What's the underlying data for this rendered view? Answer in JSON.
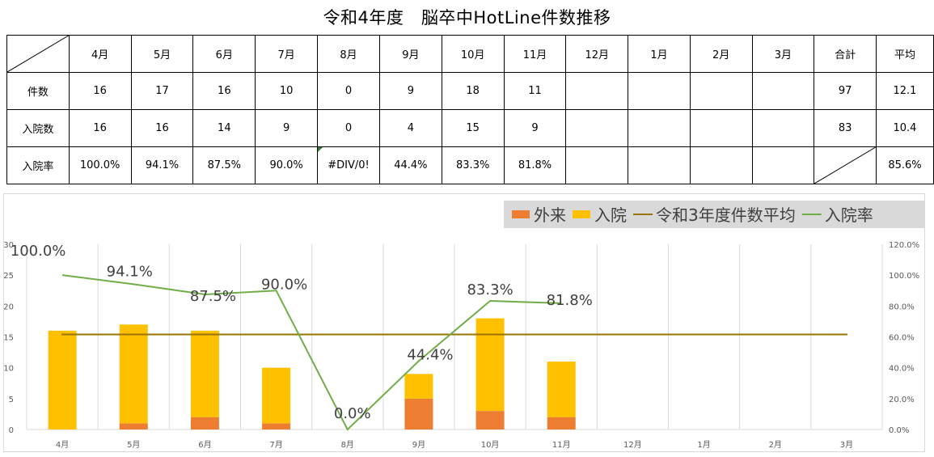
{
  "title": "令和4年度　脳卒中HotLine件数推移",
  "table": {
    "months": [
      "4月",
      "5月",
      "6月",
      "7月",
      "8月",
      "9月",
      "10月",
      "11月",
      "12月",
      "1月",
      "2月",
      "3月"
    ],
    "total_label": "合計",
    "avg_label": "平均",
    "rows": [
      {
        "label": "件数",
        "values": [
          "16",
          "17",
          "16",
          "10",
          "0",
          "9",
          "18",
          "11",
          "",
          "",
          "",
          ""
        ],
        "total": "97",
        "avg": "12.1"
      },
      {
        "label": "入院数",
        "values": [
          "16",
          "16",
          "14",
          "9",
          "0",
          "4",
          "15",
          "9",
          "",
          "",
          "",
          ""
        ],
        "total": "83",
        "avg": "10.4"
      },
      {
        "label": "入院率",
        "values": [
          "100.0%",
          "94.1%",
          "87.5%",
          "90.0%",
          "#DIV/0!",
          "44.4%",
          "83.3%",
          "81.8%",
          "",
          "",
          "",
          ""
        ],
        "total": "",
        "avg": "85.6%"
      }
    ]
  },
  "chart_data": {
    "type": "bar",
    "stacked": true,
    "categories": [
      "4月",
      "5月",
      "6月",
      "7月",
      "8月",
      "9月",
      "10月",
      "11月",
      "12月",
      "1月",
      "2月",
      "3月"
    ],
    "series": [
      {
        "name": "外来",
        "type": "bar",
        "axis": "left",
        "color": "#ed7d31",
        "values": [
          0,
          1,
          2,
          1,
          0,
          5,
          3,
          2,
          null,
          null,
          null,
          null
        ]
      },
      {
        "name": "入院",
        "type": "bar",
        "axis": "left",
        "color": "#ffc000",
        "values": [
          16,
          16,
          14,
          9,
          0,
          4,
          15,
          9,
          null,
          null,
          null,
          null
        ]
      },
      {
        "name": "令和3年度件数平均",
        "type": "line",
        "axis": "left",
        "color": "#997300",
        "values": [
          15.4,
          15.4,
          15.4,
          15.4,
          15.4,
          15.4,
          15.4,
          15.4,
          15.4,
          15.4,
          15.4,
          15.4
        ]
      },
      {
        "name": "入院率",
        "type": "line",
        "axis": "right",
        "color": "#70ad47",
        "values": [
          1.0,
          0.941,
          0.875,
          0.9,
          0.0,
          0.444,
          0.833,
          0.818,
          null,
          null,
          null,
          null
        ]
      }
    ],
    "data_labels": [
      "100.0%",
      "94.1%",
      "87.5%",
      "90.0%",
      "0.0%",
      "44.4%",
      "83.3%",
      "81.8%"
    ],
    "ylim_left": [
      0,
      30
    ],
    "yticks_left": [
      "0",
      "5",
      "10",
      "15",
      "20",
      "25",
      "30"
    ],
    "ylim_right": [
      0,
      1.2
    ],
    "yticks_right": [
      "0.0%",
      "20.0%",
      "40.0%",
      "60.0%",
      "80.0%",
      "100.0%",
      "120.0%"
    ],
    "grid": "vertical",
    "legend_position": "top-right"
  }
}
